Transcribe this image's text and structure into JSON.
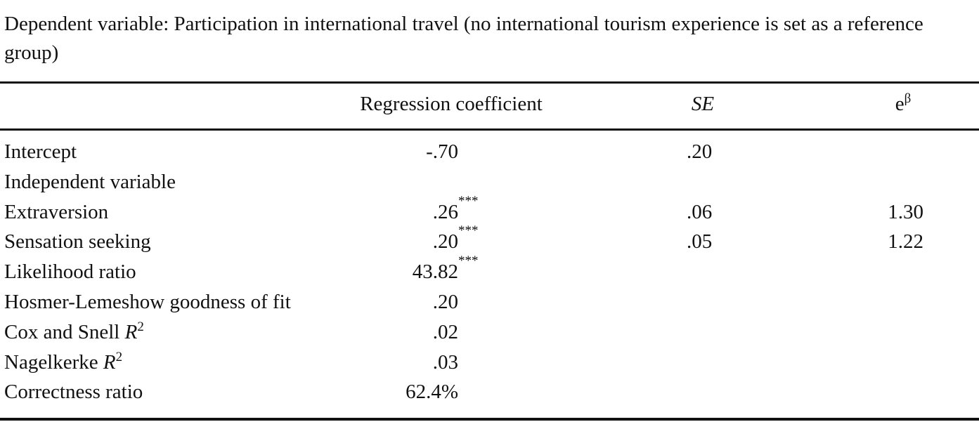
{
  "caption": "Dependent variable: Participation in international travel (no international tourism experience is set as a reference group)",
  "table": {
    "header": [
      {
        "text": "Regression coefficient"
      },
      {
        "text": "SE",
        "italic": true
      },
      {
        "text": "e",
        "sup": "β"
      }
    ],
    "rows": [
      {
        "label": {
          "text": "Intercept"
        },
        "cells": [
          {
            "text": "-.70"
          },
          {
            "text": ".20"
          },
          null
        ]
      },
      {
        "label": {
          "text": "Independent variable"
        },
        "cells": [
          null,
          null,
          null
        ]
      },
      {
        "label": {
          "text": "Extraversion"
        },
        "cells": [
          {
            "text": ".26",
            "sup": "***"
          },
          {
            "text": ".06"
          },
          {
            "text": "1.30"
          }
        ]
      },
      {
        "label": {
          "text": "Sensation seeking"
        },
        "cells": [
          {
            "text": ".20",
            "sup": "***"
          },
          {
            "text": ".05"
          },
          {
            "text": "1.22"
          }
        ]
      },
      {
        "label": {
          "text": "Likelihood ratio"
        },
        "cells": [
          {
            "text": "43.82",
            "sup": "***"
          },
          null,
          null
        ]
      },
      {
        "label": {
          "text": "Hosmer-Lemeshow goodness of fit"
        },
        "cells": [
          {
            "text": ".20"
          },
          null,
          null
        ]
      },
      {
        "label": {
          "text": "Cox and Snell ",
          "italic": "R",
          "sup": "2"
        },
        "cells": [
          {
            "text": ".02"
          },
          null,
          null
        ]
      },
      {
        "label": {
          "text": "Nagelkerke ",
          "italic": "R",
          "sup": "2"
        },
        "cells": [
          {
            "text": ".03"
          },
          null,
          null
        ]
      },
      {
        "label": {
          "text": "Correctness ratio"
        },
        "cells": [
          {
            "text": "62.4%"
          },
          null,
          null
        ]
      }
    ]
  }
}
